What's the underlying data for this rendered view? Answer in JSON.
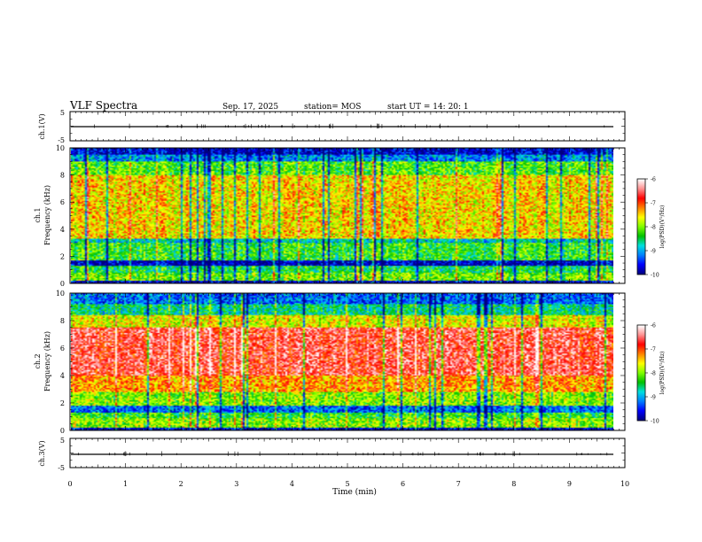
{
  "header": {
    "title": "VLF Spectra",
    "date": "Sep. 17, 2025",
    "station": "station= MOS",
    "start": "start  UT  =   14: 20: 1"
  },
  "chart_data": [
    {
      "type": "line",
      "panel": "ch1-waveform",
      "ylabel": "ch.1(V)",
      "yticks": [
        "5",
        "-5"
      ],
      "ylim": [
        -5,
        5
      ],
      "xlim": [
        0,
        10
      ],
      "series": [
        {
          "x": [
            0,
            9.85
          ],
          "values": [
            0,
            0
          ]
        }
      ]
    },
    {
      "type": "heatmap",
      "panel": "ch1-spectrogram",
      "ylabel_line1": "ch.1",
      "ylabel_line2": "Frequency (kHz)",
      "yticks": [
        "0",
        "2",
        "4",
        "6",
        "8",
        "10"
      ],
      "ylim": [
        0,
        10
      ],
      "xlim": [
        0,
        10
      ],
      "data_end_min": 9.85,
      "bands": [
        {
          "from": 0.0,
          "to": 0.2,
          "level": 0.05
        },
        {
          "from": 0.2,
          "to": 0.8,
          "level": 0.48
        },
        {
          "from": 0.8,
          "to": 1.3,
          "level": 0.38
        },
        {
          "from": 1.3,
          "to": 1.7,
          "level": 0.05
        },
        {
          "from": 1.7,
          "to": 3.0,
          "level": 0.42
        },
        {
          "from": 3.0,
          "to": 3.3,
          "level": 0.3
        },
        {
          "from": 3.3,
          "to": 8.0,
          "level": 0.62
        },
        {
          "from": 8.0,
          "to": 9.0,
          "level": 0.45
        },
        {
          "from": 9.0,
          "to": 9.5,
          "level": 0.22
        },
        {
          "from": 9.5,
          "to": 10.0,
          "level": 0.06
        }
      ],
      "colorbar": {
        "label": "log(PSD)(V²/Hz)",
        "ticks": [
          "-6",
          "-7",
          "-8",
          "-9",
          "-10"
        ],
        "range": [
          -10,
          -6
        ]
      }
    },
    {
      "type": "heatmap",
      "panel": "ch2-spectrogram",
      "ylabel_line1": "ch.2",
      "ylabel_line2": "Frequency (kHz)",
      "yticks": [
        "0",
        "2",
        "4",
        "6",
        "8",
        "10"
      ],
      "ylim": [
        0,
        10
      ],
      "xlim": [
        0,
        10
      ],
      "data_end_min": 9.85,
      "bands": [
        {
          "from": 0.0,
          "to": 0.2,
          "level": 0.05
        },
        {
          "from": 0.2,
          "to": 0.9,
          "level": 0.5
        },
        {
          "from": 0.9,
          "to": 1.3,
          "level": 0.42
        },
        {
          "from": 1.3,
          "to": 1.8,
          "level": 0.18
        },
        {
          "from": 1.8,
          "to": 2.8,
          "level": 0.5
        },
        {
          "from": 2.8,
          "to": 4.0,
          "level": 0.68
        },
        {
          "from": 4.0,
          "to": 7.5,
          "level": 0.84
        },
        {
          "from": 7.5,
          "to": 8.4,
          "level": 0.58
        },
        {
          "from": 8.4,
          "to": 9.2,
          "level": 0.34
        },
        {
          "from": 9.2,
          "to": 10.0,
          "level": 0.18
        }
      ],
      "colorbar": {
        "label": "log(PSD)(V²/Hz)",
        "ticks": [
          "-6",
          "-7",
          "-8",
          "-9",
          "-10"
        ],
        "range": [
          -10,
          -6
        ]
      }
    },
    {
      "type": "line",
      "panel": "ch3-waveform",
      "ylabel": "ch.3(V)",
      "yticks": [
        "5",
        "-5"
      ],
      "ylim": [
        -5,
        5
      ],
      "xlim": [
        0,
        10
      ],
      "series": [
        {
          "x": [
            0,
            9.85
          ],
          "values": [
            0,
            0
          ]
        }
      ]
    }
  ],
  "xaxis": {
    "label": "Time  (min)",
    "ticks": [
      "0",
      "1",
      "2",
      "3",
      "4",
      "5",
      "6",
      "7",
      "8",
      "9",
      "10"
    ],
    "range": [
      0,
      10
    ]
  },
  "colors": {
    "cmap": [
      "#000080",
      "#0000ff",
      "#0080ff",
      "#00e0e0",
      "#00c000",
      "#80ff00",
      "#ffff00",
      "#ff8000",
      "#ff0000",
      "#ff9090",
      "#ffffff"
    ]
  }
}
